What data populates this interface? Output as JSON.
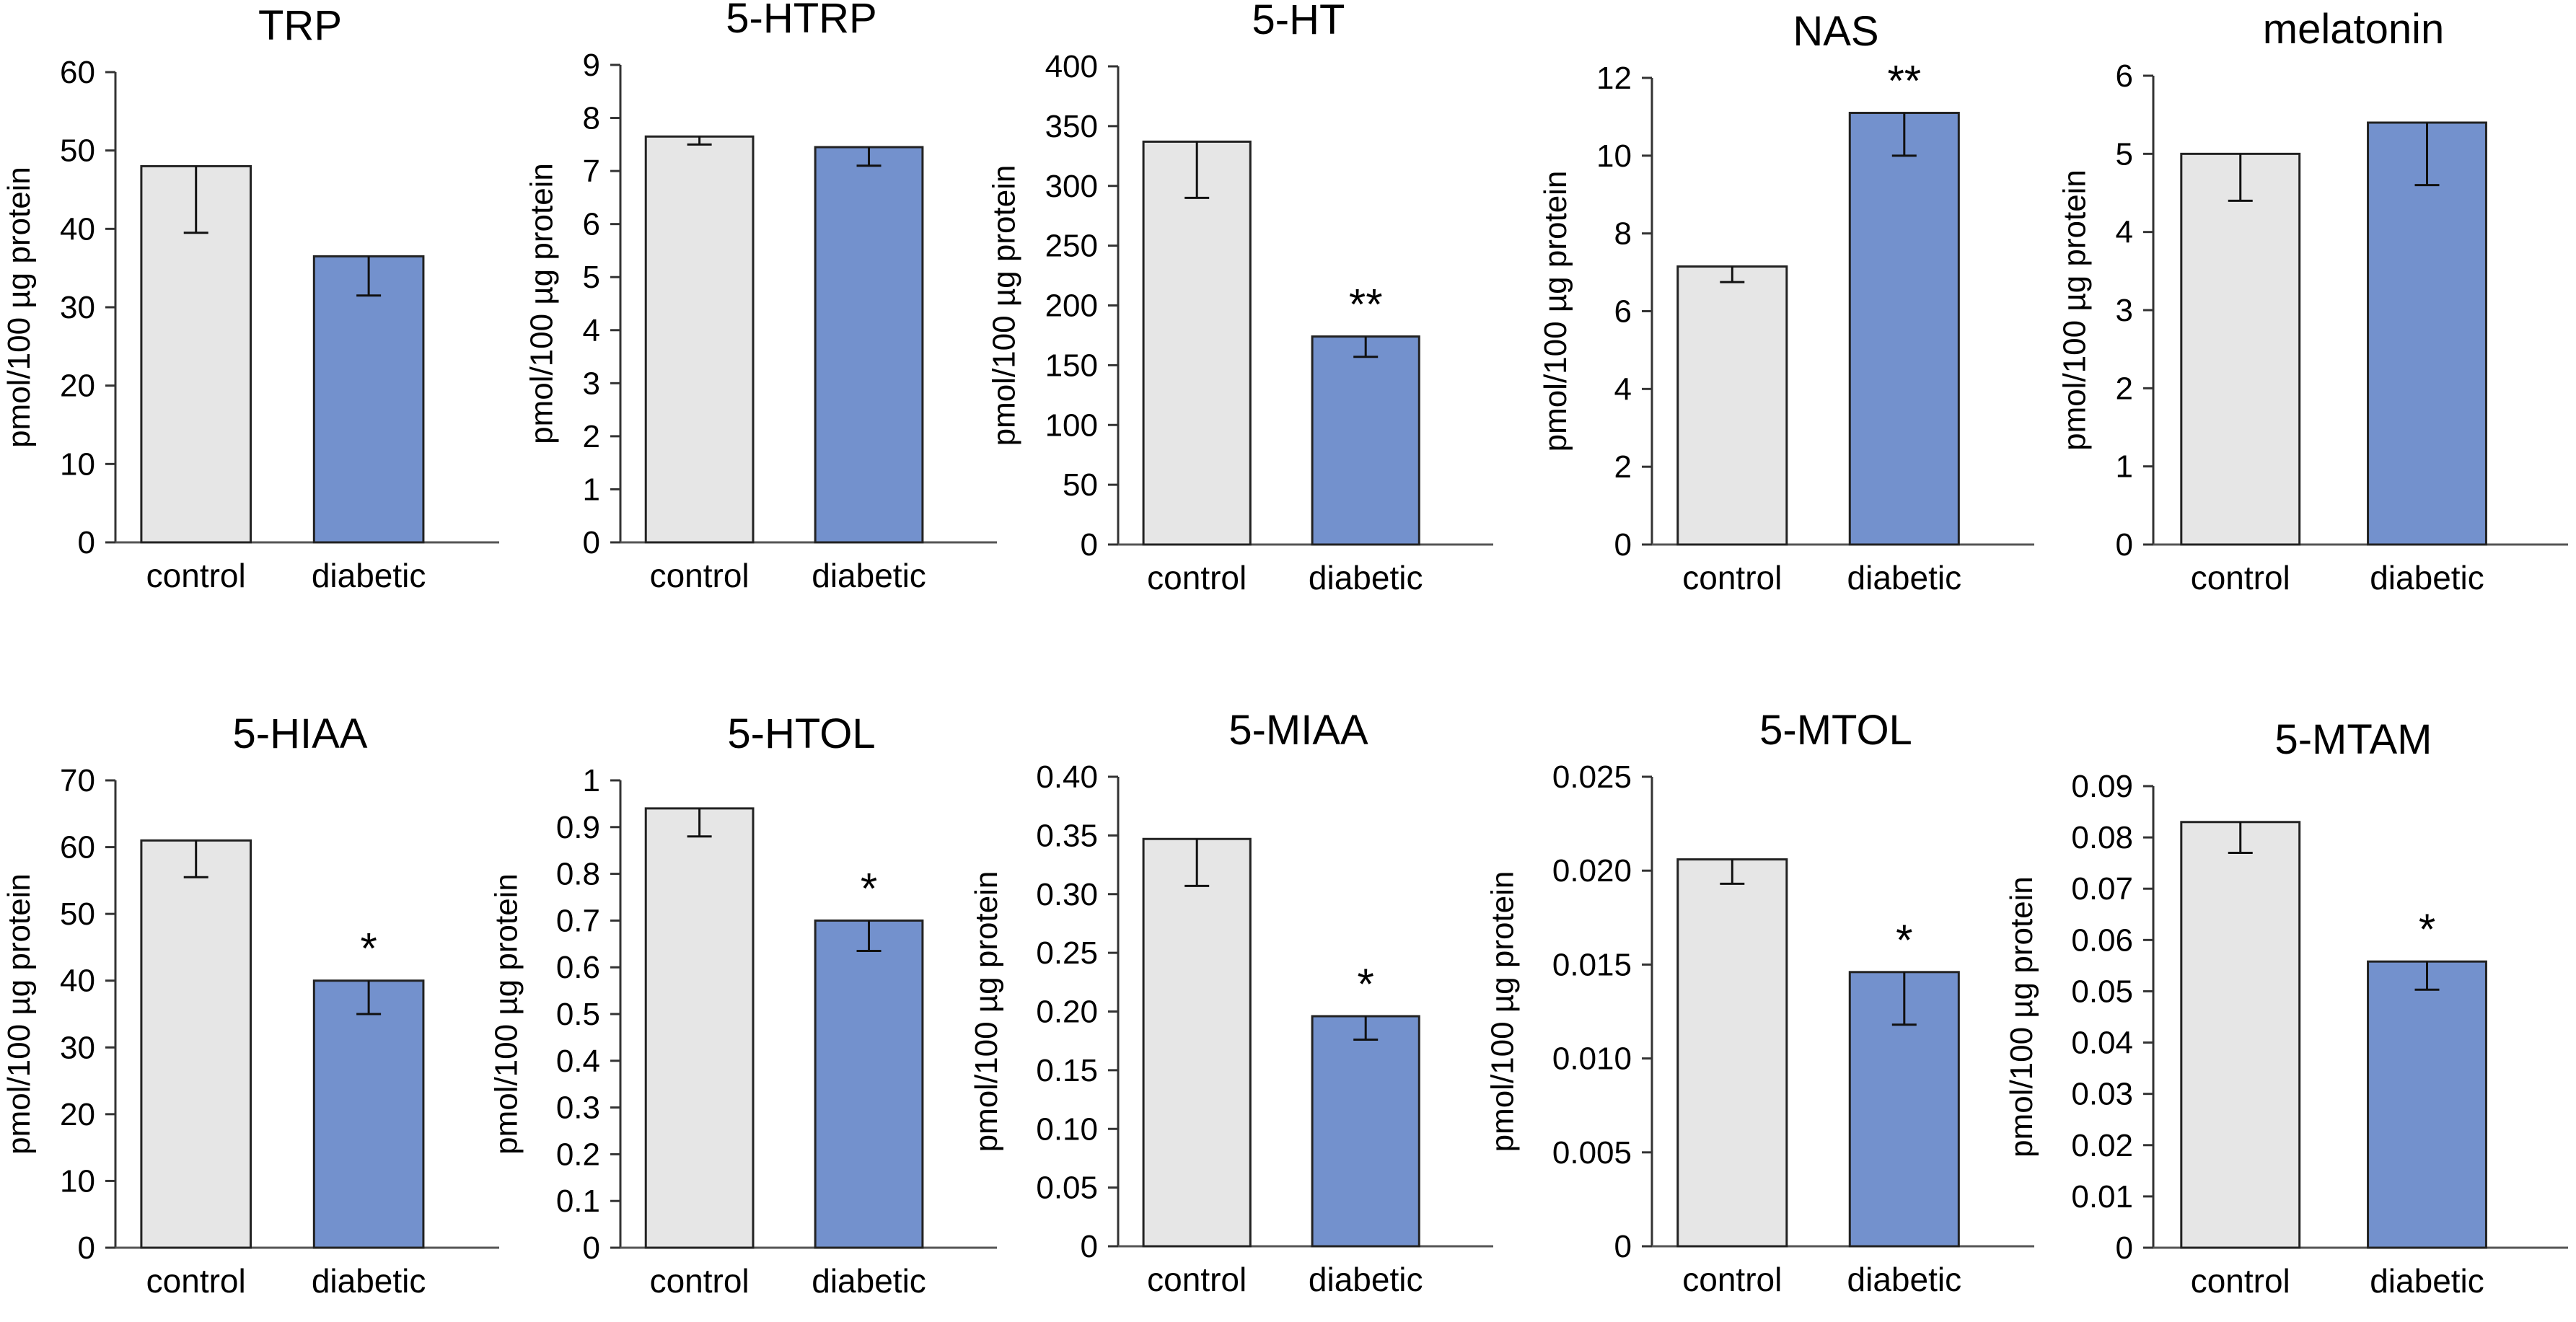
{
  "figure_title": "",
  "colors": {
    "control": "#e6e6e6",
    "diabetic": "#7391cd",
    "stroke": "#222222"
  },
  "chart_data": [
    {
      "type": "bar",
      "title": "TRP",
      "ylabel": "pmol/100 µg protein",
      "categories": [
        "control",
        "diabetic"
      ],
      "values": [
        48,
        36.5
      ],
      "errors": [
        8.5,
        5
      ],
      "significance": [
        "",
        ""
      ],
      "ylim": [
        0,
        60
      ],
      "yticks": [
        0,
        10,
        20,
        30,
        40,
        50,
        60
      ],
      "ytick_labels": [
        "0",
        "10",
        "20",
        "30",
        "40",
        "50",
        "60"
      ]
    },
    {
      "type": "bar",
      "title": "5-HTRP",
      "ylabel": "pmol/100 µg protein",
      "categories": [
        "control",
        "diabetic"
      ],
      "values": [
        7.65,
        7.45
      ],
      "errors": [
        0.15,
        0.35
      ],
      "significance": [
        "",
        ""
      ],
      "ylim": [
        0,
        9
      ],
      "yticks": [
        0,
        1,
        2,
        3,
        4,
        5,
        6,
        7,
        8,
        9
      ],
      "ytick_labels": [
        "0",
        "1",
        "2",
        "3",
        "4",
        "5",
        "6",
        "7",
        "8",
        "9"
      ]
    },
    {
      "type": "bar",
      "title": "5-HT",
      "ylabel": "pmol/100 µg protein",
      "categories": [
        "control",
        "diabetic"
      ],
      "values": [
        337,
        174
      ],
      "errors": [
        47,
        17
      ],
      "significance": [
        "",
        "**"
      ],
      "ylim": [
        0,
        400
      ],
      "yticks": [
        0,
        50,
        100,
        150,
        200,
        250,
        300,
        350,
        400
      ],
      "ytick_labels": [
        "0",
        "50",
        "100",
        "150",
        "200",
        "250",
        "300",
        "350",
        "400"
      ]
    },
    {
      "type": "bar",
      "title": "NAS",
      "ylabel": "pmol/100 µg protein",
      "categories": [
        "control",
        "diabetic"
      ],
      "values": [
        7.15,
        11.1
      ],
      "errors": [
        0.4,
        1.1
      ],
      "significance": [
        "",
        "**"
      ],
      "ylim": [
        0,
        12
      ],
      "yticks": [
        0,
        2,
        4,
        6,
        8,
        10,
        12
      ],
      "ytick_labels": [
        "0",
        "2",
        "4",
        "6",
        "8",
        "10",
        "12"
      ]
    },
    {
      "type": "bar",
      "title": "melatonin",
      "ylabel": "pmol/100 µg protein",
      "categories": [
        "control",
        "diabetic"
      ],
      "values": [
        5.0,
        5.4
      ],
      "errors": [
        0.6,
        0.8
      ],
      "significance": [
        "",
        ""
      ],
      "ylim": [
        0,
        6
      ],
      "yticks": [
        0,
        1,
        2,
        3,
        4,
        5,
        6
      ],
      "ytick_labels": [
        "0",
        "1",
        "2",
        "3",
        "4",
        "5",
        "6"
      ]
    },
    {
      "type": "bar",
      "title": "5-HIAA",
      "ylabel": "pmol/100 µg protein",
      "categories": [
        "control",
        "diabetic"
      ],
      "values": [
        61,
        40
      ],
      "errors": [
        5.5,
        5
      ],
      "significance": [
        "",
        "*"
      ],
      "ylim": [
        0,
        70
      ],
      "yticks": [
        0,
        10,
        20,
        30,
        40,
        50,
        60,
        70
      ],
      "ytick_labels": [
        "0",
        "10",
        "20",
        "30",
        "40",
        "50",
        "60",
        "70"
      ]
    },
    {
      "type": "bar",
      "title": "5-HTOL",
      "ylabel": "pmol/100 µg protein",
      "categories": [
        "control",
        "diabetic"
      ],
      "values": [
        0.94,
        0.7
      ],
      "errors": [
        0.06,
        0.065
      ],
      "significance": [
        "",
        "*"
      ],
      "ylim": [
        0,
        1
      ],
      "yticks": [
        0,
        0.1,
        0.2,
        0.3,
        0.4,
        0.5,
        0.6,
        0.7,
        0.8,
        0.9,
        1
      ],
      "ytick_labels": [
        "0",
        "0.1",
        "0.2",
        "0.3",
        "0.4",
        "0.5",
        "0.6",
        "0.7",
        "0.8",
        "0.9",
        "1"
      ]
    },
    {
      "type": "bar",
      "title": "5-MIAA",
      "ylabel": "pmol/100 µg protein",
      "categories": [
        "control",
        "diabetic"
      ],
      "values": [
        0.347,
        0.196
      ],
      "errors": [
        0.04,
        0.02
      ],
      "significance": [
        "",
        "*"
      ],
      "ylim": [
        0,
        0.4
      ],
      "yticks": [
        0,
        0.05,
        0.1,
        0.15,
        0.2,
        0.25,
        0.3,
        0.35,
        0.4
      ],
      "ytick_labels": [
        "0",
        "0.05",
        "0.10",
        "0.15",
        "0.20",
        "0.25",
        "0.30",
        "0.35",
        "0.40"
      ]
    },
    {
      "type": "bar",
      "title": "5-MTOL",
      "ylabel": "pmol/100 µg protein",
      "categories": [
        "control",
        "diabetic"
      ],
      "values": [
        0.0206,
        0.0146
      ],
      "errors": [
        0.0013,
        0.0028
      ],
      "significance": [
        "",
        "*"
      ],
      "ylim": [
        0,
        0.025
      ],
      "yticks": [
        0,
        0.005,
        0.01,
        0.015,
        0.02,
        0.025
      ],
      "ytick_labels": [
        "0",
        "0.005",
        "0.010",
        "0.015",
        "0.020",
        "0.025"
      ]
    },
    {
      "type": "bar",
      "title": "5-MTAM",
      "ylabel": "pmol/100 µg protein",
      "categories": [
        "control",
        "diabetic"
      ],
      "values": [
        0.083,
        0.0558
      ],
      "errors": [
        0.006,
        0.0055
      ],
      "significance": [
        "",
        "*"
      ],
      "ylim": [
        0,
        0.09
      ],
      "yticks": [
        0,
        0.01,
        0.02,
        0.03,
        0.04,
        0.05,
        0.06,
        0.07,
        0.08,
        0.09
      ],
      "ytick_labels": [
        "0",
        "0.01",
        "0.02",
        "0.03",
        "0.04",
        "0.05",
        "0.06",
        "0.07",
        "0.08",
        "0.09"
      ]
    }
  ]
}
